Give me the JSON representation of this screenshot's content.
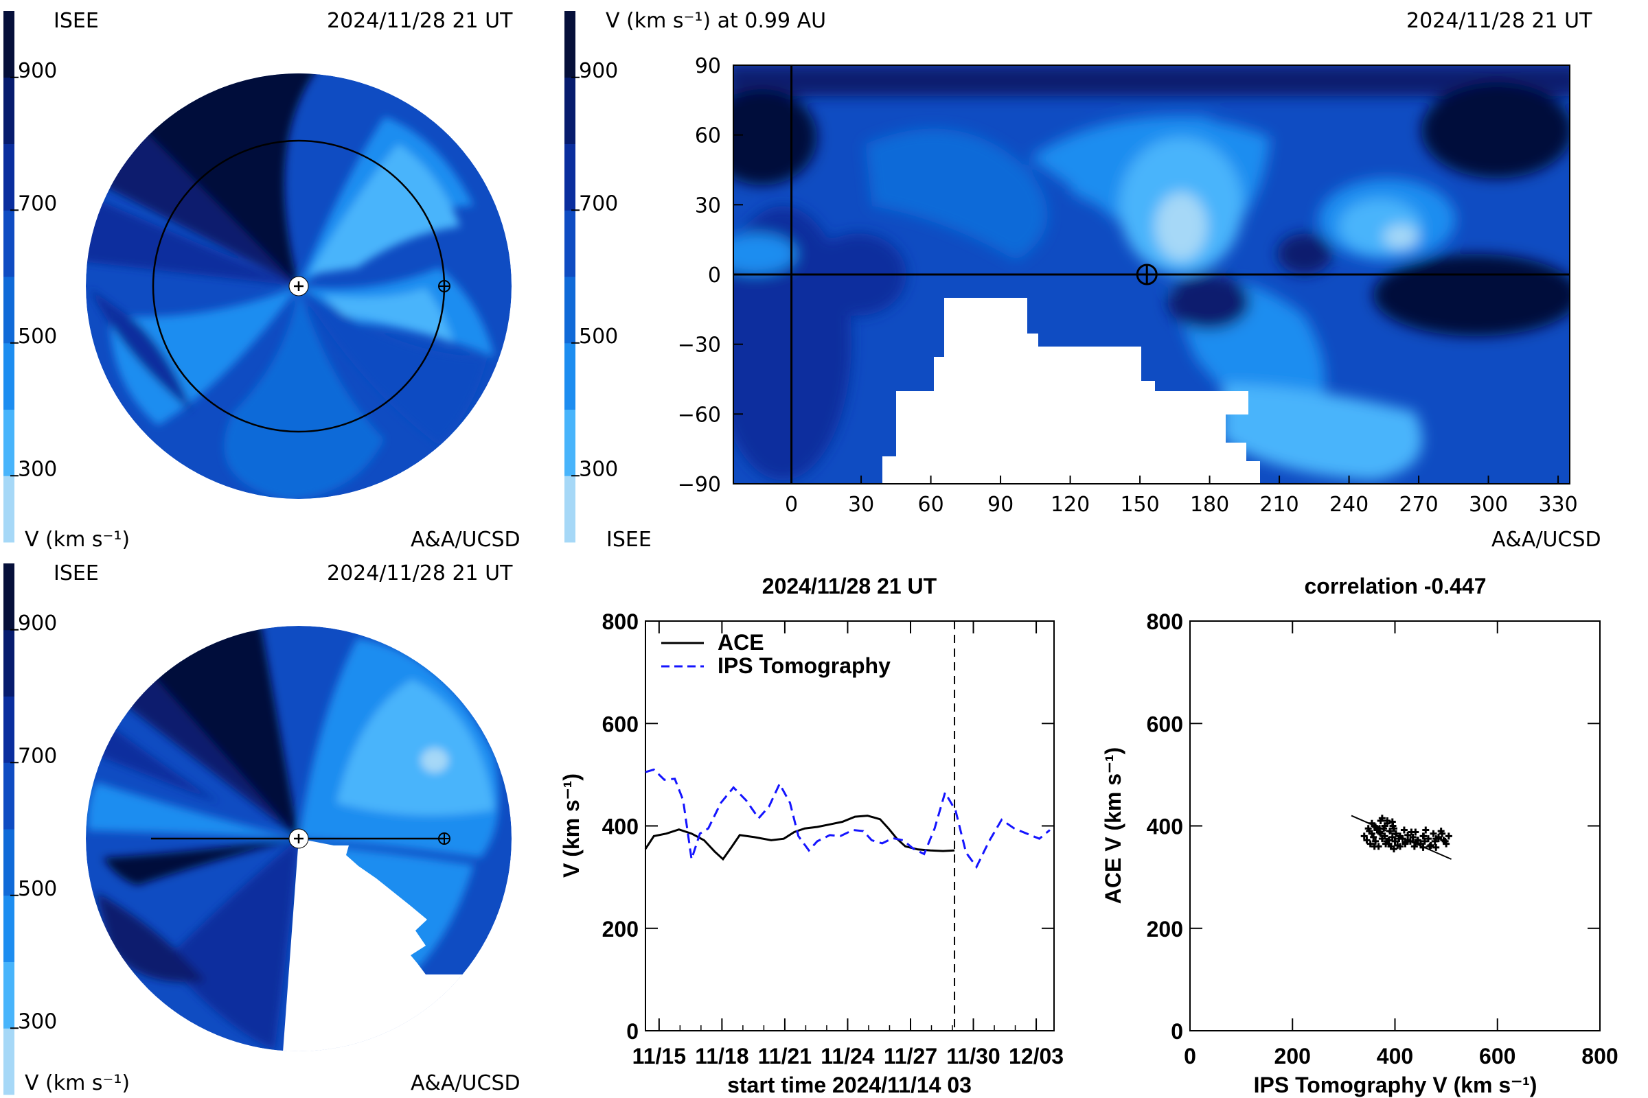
{
  "colorbar": {
    "levels": [
      "#a6d8f7",
      "#48b4fb",
      "#1d8df0",
      "#106ad8",
      "#0f4cc2",
      "#0a2e9e",
      "#071c6e",
      "#06103a"
    ],
    "ticks": [
      "900",
      "700",
      "500",
      "300"
    ]
  },
  "panel_tl": {
    "agency": "ISEE",
    "timestamp": "2024/11/28 21 UT",
    "units_label": "V (km s⁻¹)",
    "credit": "A&A/UCSD"
  },
  "panel_tr": {
    "title": "V (km s⁻¹) at 0.99 AU",
    "timestamp": "2024/11/28 21 UT",
    "agency": "ISEE",
    "credit": "A&A/UCSD"
  },
  "panel_bl": {
    "agency": "ISEE",
    "timestamp": "2024/11/28 21 UT",
    "units_label": "V (km s⁻¹)",
    "credit": "A&A/UCSD"
  },
  "chart_data": [
    {
      "type": "heatmap",
      "title": "V (km s⁻¹) at 0.99 AU",
      "x_ticks": [
        "0",
        "30",
        "60",
        "90",
        "120",
        "150",
        "180",
        "210",
        "240",
        "270",
        "300",
        "330"
      ],
      "y_ticks": [
        "90",
        "60",
        "30",
        "0",
        "−30",
        "−60",
        "−90"
      ],
      "xlim": [
        -25,
        335
      ],
      "ylim": [
        -90,
        90
      ],
      "earth_marker": {
        "x": 153,
        "y": 0
      }
    },
    {
      "type": "line",
      "title": "2024/11/28 21 UT",
      "xlabel": "start time 2024/11/14 03",
      "ylabel": "V (km s⁻¹)",
      "x_ticks": [
        "11/15",
        "11/18",
        "11/21",
        "11/24",
        "11/27",
        "11/30",
        "12/03"
      ],
      "y_ticks": [
        "0",
        "200",
        "400",
        "600",
        "800"
      ],
      "ylim": [
        0,
        800
      ],
      "xlim": [
        0,
        19.5
      ],
      "current_time": 14.75,
      "series": [
        {
          "name": "ACE",
          "style": "solid",
          "color": "#000000",
          "x": [
            0,
            0.4,
            1,
            1.6,
            2.2,
            2.8,
            3.3,
            3.7,
            4.1,
            4.5,
            5.2,
            6,
            6.6,
            7.1,
            7.6,
            8.2,
            8.8,
            9.4,
            10,
            10.6,
            11.2,
            11.6,
            12,
            12.4,
            13,
            13.6,
            14.2,
            14.75
          ],
          "y": [
            355,
            380,
            385,
            393,
            385,
            372,
            350,
            335,
            358,
            382,
            378,
            372,
            375,
            388,
            395,
            398,
            403,
            408,
            418,
            420,
            413,
            395,
            375,
            360,
            354,
            352,
            351,
            352
          ]
        },
        {
          "name": "IPS Tomography",
          "style": "dashed",
          "color": "#1414ff",
          "x": [
            0,
            0.4,
            0.9,
            1.4,
            1.8,
            2.2,
            2.6,
            3,
            3.6,
            4.2,
            4.8,
            5.4,
            5.9,
            6.4,
            6.9,
            7.3,
            7.8,
            8.2,
            8.8,
            9.3,
            9.9,
            10.4,
            10.8,
            11.3,
            11.8,
            12.3,
            12.8,
            13.3,
            13.8,
            14.3,
            14.8,
            15.3,
            15.8,
            16.4,
            17,
            17.6,
            18.2,
            18.8,
            19.3
          ],
          "y": [
            505,
            510,
            490,
            492,
            450,
            335,
            385,
            395,
            445,
            475,
            450,
            415,
            438,
            482,
            445,
            380,
            352,
            370,
            382,
            380,
            392,
            390,
            372,
            366,
            376,
            372,
            355,
            345,
            395,
            465,
            430,
            348,
            320,
            370,
            412,
            395,
            385,
            375,
            392
          ]
        }
      ]
    },
    {
      "type": "scatter",
      "title": "correlation -0.447",
      "xlabel": "IPS Tomography V (km s⁻¹)",
      "ylabel": "ACE V (km s⁻¹)",
      "x_ticks": [
        "0",
        "200",
        "400",
        "600",
        "800"
      ],
      "y_ticks": [
        "0",
        "200",
        "400",
        "600",
        "800"
      ],
      "xlim": [
        0,
        800
      ],
      "ylim": [
        0,
        800
      ],
      "fit_line": {
        "x": [
          315,
          510
        ],
        "y": [
          420,
          335
        ]
      },
      "points": {
        "x": [
          340,
          345,
          350,
          352,
          355,
          358,
          360,
          362,
          365,
          368,
          370,
          372,
          375,
          378,
          380,
          382,
          385,
          388,
          390,
          392,
          395,
          398,
          400,
          402,
          405,
          410,
          415,
          418,
          420,
          425,
          430,
          435,
          438,
          440,
          445,
          450,
          455,
          458,
          460,
          465,
          470,
          475,
          478,
          480,
          485,
          490,
          495,
          500,
          505,
          348,
          360,
          372,
          384,
          396,
          408,
          420,
          432,
          444,
          456,
          468,
          480,
          492,
          375,
          385,
          395,
          380,
          370,
          362,
          355,
          388,
          398,
          410,
          425,
          440,
          455,
          470,
          485,
          498
        ],
        "y": [
          380,
          372,
          390,
          365,
          385,
          378,
          400,
          370,
          392,
          360,
          388,
          410,
          375,
          395,
          380,
          365,
          405,
          372,
          390,
          360,
          378,
          395,
          370,
          385,
          362,
          380,
          375,
          392,
          368,
          382,
          370,
          378,
          360,
          388,
          372,
          365,
          380,
          370,
          392,
          375,
          362,
          385,
          370,
          358,
          378,
          390,
          372,
          365,
          380,
          395,
          360,
          385,
          370,
          400,
          375,
          365,
          388,
          372,
          380,
          360,
          375,
          385,
          415,
          410,
          408,
          400,
          395,
          398,
          405,
          365,
          355,
          360,
          372,
          368,
          358,
          362,
          375,
          370
        ]
      }
    }
  ]
}
